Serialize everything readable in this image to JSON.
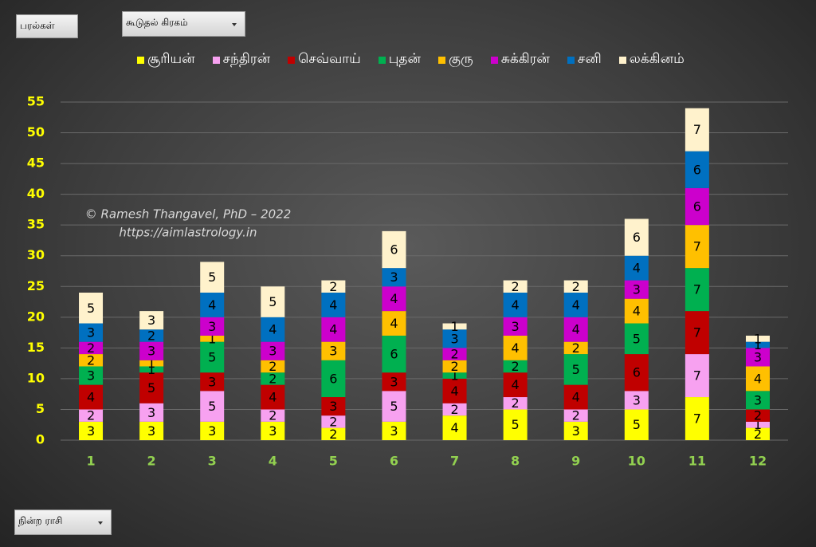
{
  "pivot_fields": [
    "பரல்கள்",
    "கூடுதல் கிரகம்",
    "நின்ற ராசி"
  ],
  "chart_data": {
    "type": "stacked_bar",
    "annotations": [
      "© Ramesh Thangavel, PhD – 2022",
      "https://aimlastrology.in"
    ],
    "categories": [
      "1",
      "2",
      "3",
      "4",
      "5",
      "6",
      "7",
      "8",
      "9",
      "10",
      "11",
      "12"
    ],
    "series": [
      {
        "name": "சூரியன்",
        "color": "#ffff00",
        "values": [
          3,
          3,
          3,
          3,
          2,
          3,
          4,
          5,
          3,
          5,
          7,
          2
        ]
      },
      {
        "name": "சந்திரன்",
        "color": "#f7a1f0",
        "values": [
          2,
          3,
          5,
          2,
          2,
          5,
          2,
          2,
          2,
          3,
          7,
          1
        ]
      },
      {
        "name": "செவ்வாய்",
        "color": "#c00000",
        "values": [
          4,
          5,
          3,
          4,
          3,
          3,
          4,
          4,
          4,
          6,
          7,
          2
        ]
      },
      {
        "name": "புதன்",
        "color": "#00b050",
        "values": [
          3,
          1,
          5,
          2,
          6,
          6,
          1,
          2,
          5,
          5,
          7,
          3
        ]
      },
      {
        "name": "குரு",
        "color": "#ffc000",
        "values": [
          2,
          1,
          1,
          2,
          3,
          4,
          2,
          4,
          2,
          4,
          7,
          4
        ]
      },
      {
        "name": "சுக்கிரன்",
        "color": "#cc00cc",
        "values": [
          2,
          3,
          3,
          3,
          4,
          4,
          2,
          3,
          4,
          3,
          6,
          3
        ]
      },
      {
        "name": "சனி",
        "color": "#0070c0",
        "values": [
          3,
          2,
          4,
          4,
          4,
          3,
          3,
          4,
          4,
          4,
          6,
          1
        ]
      },
      {
        "name": "லக்கினம்",
        "color": "#fff2cc",
        "values": [
          5,
          3,
          5,
          5,
          2,
          6,
          1,
          2,
          2,
          6,
          7,
          1
        ]
      }
    ],
    "ylim": [
      0,
      55
    ],
    "yticks": [
      0,
      5,
      10,
      15,
      20,
      25,
      30,
      35,
      40,
      45,
      50,
      55
    ],
    "grid": true,
    "legend": "top"
  }
}
